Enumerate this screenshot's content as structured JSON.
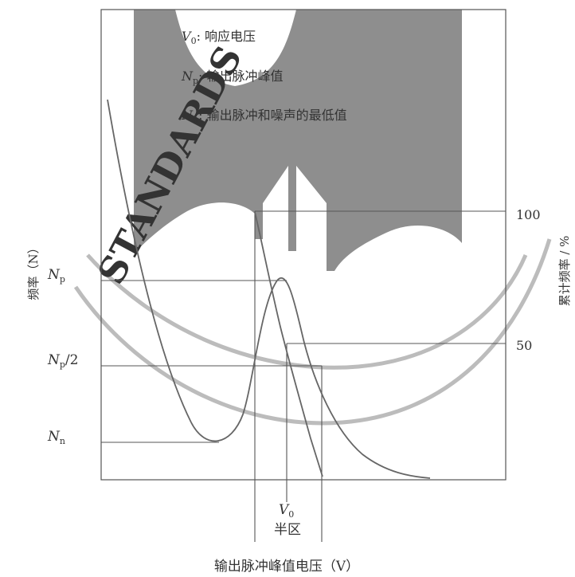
{
  "chart_data": {
    "type": "line",
    "title": "",
    "xlabel": "输出脉冲峰值电压（V）",
    "ylabel": "频率（N）",
    "ylabel_right": "累计频率 / %",
    "legend": [
      {
        "sym": "V",
        "sub": "0",
        "text": ": 响应电压"
      },
      {
        "sym": "N",
        "sub": "p",
        "text": ": 输出脉冲峰值"
      },
      {
        "sym": "N",
        "sub": "n",
        "text": ": 输出脉冲和噪声的最低值"
      }
    ],
    "left_ticks": [
      {
        "sym": "N",
        "sub": "p",
        "suffix": "",
        "level": 1.0
      },
      {
        "sym": "N",
        "sub": "p",
        "suffix": "/2",
        "level": 0.5
      },
      {
        "sym": "N",
        "sub": "n",
        "suffix": "",
        "level": 0.0
      }
    ],
    "right_ticks": [
      {
        "label": "100",
        "value": 100
      },
      {
        "label": "50",
        "value": 50
      }
    ],
    "bottom_labels": {
      "v0_sym": "V",
      "v0_sub": "0",
      "half_zone": "半区"
    },
    "series": [
      {
        "key": "frequency",
        "values": [
          "noise decay",
          "minimum N_n",
          "peak N_p",
          "tail decay"
        ]
      },
      {
        "key": "cumulative",
        "values": [
          "100% at low voltage",
          "50% at V0",
          "0% at high voltage"
        ]
      }
    ]
  },
  "watermark": {
    "text": "STANDARDS",
    "color": "#8c8c8c"
  }
}
